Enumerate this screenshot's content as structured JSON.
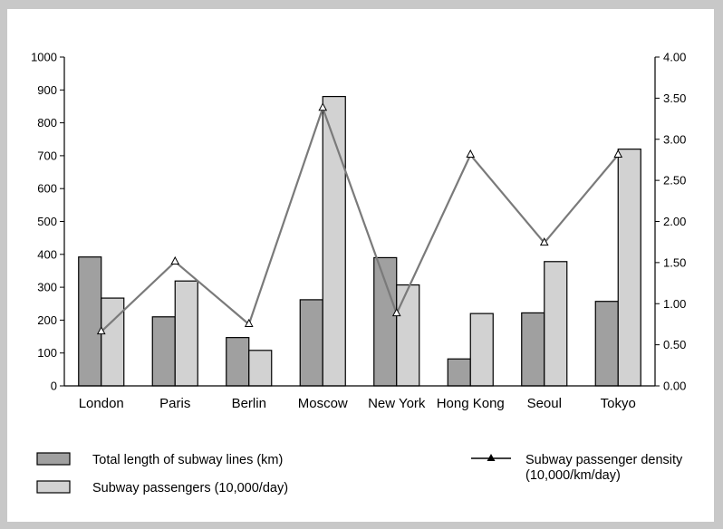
{
  "chart_data": {
    "type": "bar",
    "categories": [
      "London",
      "Paris",
      "Berlin",
      "Moscow",
      "New York",
      "Hong Kong",
      "Seoul",
      "Tokyo"
    ],
    "series": [
      {
        "name": "Total length of subway lines (km)",
        "axis": "left",
        "kind": "bar",
        "color": "#a0a0a0",
        "values": [
          392,
          210,
          147,
          262,
          390,
          82,
          222,
          257
        ]
      },
      {
        "name": "Subway passengers (10,000/day)",
        "axis": "left",
        "kind": "bar",
        "color": "#d2d2d2",
        "values": [
          267,
          319,
          108,
          880,
          307,
          220,
          378,
          720
        ]
      },
      {
        "name_lines": [
          "Subway passenger density",
          "(10,000/km/day)"
        ],
        "axis": "right",
        "kind": "line",
        "color": "#7a7a7a",
        "marker": "triangle",
        "values": [
          0.66,
          1.51,
          0.75,
          3.38,
          0.88,
          2.81,
          1.74,
          2.81
        ]
      }
    ],
    "ylim_left": [
      0,
      1000
    ],
    "yticks_left": [
      "0",
      "100",
      "200",
      "300",
      "400",
      "500",
      "600",
      "700",
      "800",
      "900",
      "1000"
    ],
    "ylim_right": [
      0,
      4
    ],
    "yticks_right": [
      "0.00",
      "0.50",
      "1.00",
      "1.50",
      "2.00",
      "2.50",
      "3.00",
      "3.50",
      "4.00"
    ],
    "grid": false,
    "legend_position": "bottom"
  }
}
